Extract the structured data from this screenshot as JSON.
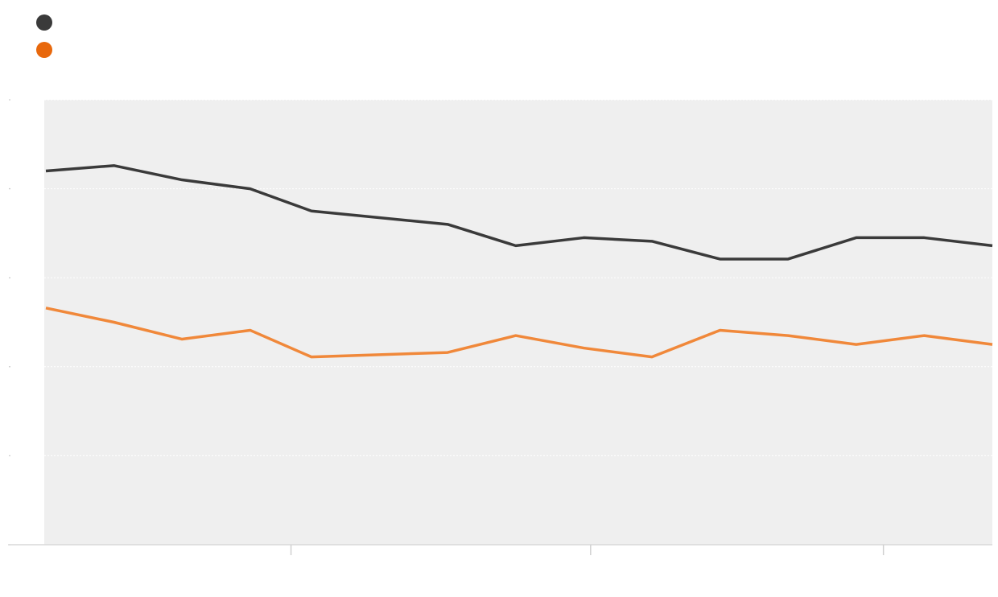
{
  "chart_data": {
    "type": "line",
    "x": [
      0,
      1,
      2,
      3,
      3.9,
      5.9,
      6.9,
      7.9,
      8.9,
      9.9,
      10.9,
      11.9,
      12.9,
      13.9
    ],
    "xlim": [
      0,
      13.9
    ],
    "xticks": [
      3.6,
      8,
      12.3
    ],
    "ylim": [
      0,
      5
    ],
    "yticks": [
      0,
      1,
      2,
      3,
      4,
      5
    ],
    "grid": true,
    "legend": "top-left",
    "series": [
      {
        "color": "#3a3a3a",
        "values": [
          4.2,
          4.26,
          4.1,
          4.0,
          3.75,
          3.6,
          3.36,
          3.45,
          3.41,
          3.21,
          3.21,
          3.45,
          3.45,
          3.36
        ]
      },
      {
        "color": "#f0883a",
        "values": [
          2.66,
          2.5,
          2.31,
          2.41,
          2.11,
          2.16,
          2.35,
          2.21,
          2.11,
          2.41,
          2.35,
          2.25,
          2.35,
          2.25
        ]
      }
    ]
  }
}
